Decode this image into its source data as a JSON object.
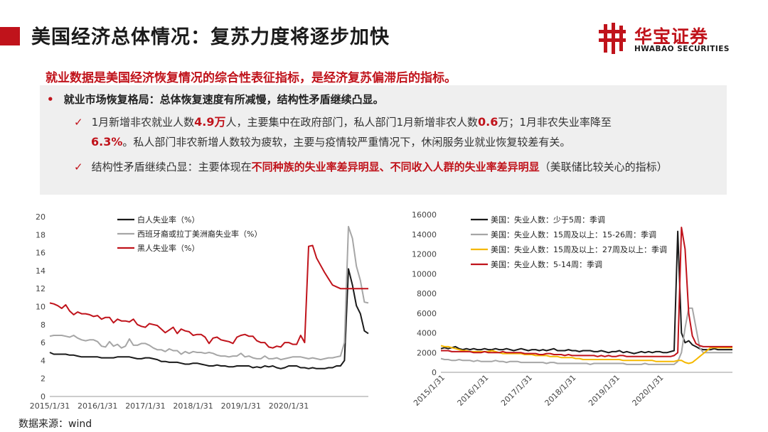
{
  "slide": {
    "title": "美国经济总体情况：复苏力度将逐步加快",
    "accent_color": "#c0131b",
    "logo": {
      "cn": "华宝证券",
      "en": "HWABAO SECURITIES"
    },
    "headline": "就业数据是美国经济恢复情况的综合性表征指标，是经济复苏偏滞后的指标。",
    "bullet": "就业市场恢复格局：总体恢复速度有所减慢，结构性矛盾继续凸显。",
    "check1": {
      "p1": "1月新增非农就业人数",
      "v1": "4.9万",
      "p2": "人，主要集中在政府部门，私人部门1月新增非农人数",
      "v2": "0.6",
      "p3": "万；1月非农失业率降至",
      "v3": "6.3%",
      "p4": "。私人部门非农新增人数较为疲软，主要与疫情较严重情况下，休闲服务业就业恢复较差有关。"
    },
    "check2": {
      "p1": "结构性矛盾继续凸显：主要体现在",
      "h1": "不同种族的失业率差异明显、不同收入人群的失业率差异明显",
      "p2": "（美联储比较关心的指标）"
    },
    "source": "数据来源：wind"
  },
  "chart_data": [
    {
      "type": "line",
      "title": "",
      "ylim": [
        0,
        20
      ],
      "yticks": [
        "0",
        "2",
        "4",
        "6",
        "8",
        "10",
        "12",
        "14",
        "16",
        "18",
        "20"
      ],
      "xticks": [
        "2015/1/31",
        "2016/1/31",
        "2017/1/31",
        "2018/1/31",
        "2019/1/31",
        "2020/1/31"
      ],
      "x_start": "2015-01",
      "legend_position": "top-center",
      "series": [
        {
          "name": "白人失业率（%）",
          "color": "#1a1a1a",
          "values": [
            4.9,
            4.7,
            4.7,
            4.7,
            4.7,
            4.6,
            4.6,
            4.5,
            4.4,
            4.4,
            4.4,
            4.4,
            4.4,
            4.3,
            4.3,
            4.3,
            4.3,
            4.4,
            4.4,
            4.4,
            4.4,
            4.3,
            4.2,
            4.2,
            4.3,
            4.3,
            4.2,
            4.1,
            3.9,
            3.9,
            3.8,
            3.8,
            3.8,
            3.7,
            3.6,
            3.6,
            3.7,
            3.7,
            3.6,
            3.5,
            3.4,
            3.4,
            3.5,
            3.4,
            3.4,
            3.3,
            3.3,
            3.4,
            3.4,
            3.4,
            3.4,
            3.2,
            3.3,
            3.2,
            3.4,
            3.3,
            3.4,
            3.2,
            3.1,
            3.2,
            3.4,
            3.4,
            3.4,
            3.2,
            3.2,
            3.1,
            3.2,
            3.1,
            3.1,
            3.1,
            3.2,
            3.2,
            3.4,
            3.4,
            4.0,
            14.2,
            12.4,
            10.1,
            9.2,
            7.3,
            7.0
          ]
        },
        {
          "name": "西班牙裔或拉丁美洲裔失业率（%）",
          "color": "#a6a6a6",
          "values": [
            6.7,
            6.8,
            6.8,
            6.8,
            6.7,
            6.6,
            6.8,
            6.5,
            6.3,
            6.2,
            6.3,
            6.3,
            6.1,
            5.6,
            5.5,
            6.1,
            5.6,
            5.8,
            5.4,
            5.6,
            6.4,
            5.7,
            5.7,
            5.9,
            5.9,
            5.7,
            5.4,
            5.2,
            5.2,
            5.0,
            5.3,
            5.1,
            5.1,
            4.7,
            5.0,
            4.8,
            5.0,
            4.9,
            4.9,
            4.8,
            4.9,
            4.8,
            4.6,
            4.5,
            4.5,
            4.4,
            4.5,
            4.5,
            4.8,
            4.4,
            4.5,
            4.3,
            4.2,
            4.2,
            4.5,
            4.2,
            4.2,
            4.3,
            4.1,
            4.2,
            4.3,
            4.4,
            4.4,
            4.4,
            4.3,
            4.2,
            4.3,
            4.2,
            4.1,
            4.2,
            4.3,
            4.3,
            4.4,
            4.5,
            6.0,
            18.9,
            17.6,
            14.5,
            12.9,
            10.5,
            10.4
          ]
        },
        {
          "name": "黑人失业率（%）",
          "color": "#c0131b",
          "values": [
            10.4,
            10.3,
            10.1,
            9.8,
            10.2,
            9.5,
            9.1,
            9.4,
            9.2,
            9.2,
            9.1,
            8.9,
            9.0,
            8.6,
            8.8,
            8.8,
            8.2,
            8.6,
            8.4,
            8.4,
            8.3,
            8.6,
            8.0,
            7.8,
            7.7,
            8.1,
            8.0,
            7.9,
            7.5,
            7.1,
            7.4,
            7.7,
            7.0,
            7.5,
            7.3,
            7.2,
            6.8,
            6.9,
            6.9,
            6.6,
            5.9,
            6.5,
            6.6,
            6.3,
            6.2,
            6.1,
            5.9,
            6.6,
            6.8,
            6.9,
            6.7,
            6.7,
            6.2,
            6.0,
            6.0,
            5.5,
            5.4,
            5.6,
            5.5,
            6.0,
            6.0,
            5.8,
            5.8,
            6.8,
            6.0,
            16.7,
            16.8,
            15.4,
            14.6,
            13.8,
            13.1,
            12.4,
            12.2,
            12.0,
            12.0,
            12.0,
            12.0,
            12.0,
            12.0,
            12.0,
            12.0
          ]
        }
      ]
    },
    {
      "type": "line",
      "title": "",
      "ylim": [
        0,
        16000
      ],
      "yticks": [
        "0",
        "2000",
        "4000",
        "6000",
        "8000",
        "10000",
        "12000",
        "14000",
        "16000"
      ],
      "xticks": [
        "2015/1/31",
        "2016/1/31",
        "2017/1/31",
        "2018/1/31",
        "2019/1/31",
        "2020/1/31"
      ],
      "x_start": "2015-01",
      "legend_position": "top-center",
      "series": [
        {
          "name": "美国：失业人数：少于5周：季调",
          "color": "#1a1a1a",
          "values": [
            2400,
            2500,
            2400,
            2500,
            2600,
            2400,
            2300,
            2400,
            2300,
            2400,
            2300,
            2300,
            2400,
            2300,
            2300,
            2400,
            2300,
            2300,
            2400,
            2300,
            2200,
            2300,
            2400,
            2300,
            2200,
            2300,
            2300,
            2200,
            2300,
            2200,
            2300,
            2400,
            2200,
            2200,
            2200,
            2300,
            2200,
            2200,
            2100,
            2200,
            2200,
            2200,
            2100,
            2100,
            2200,
            2100,
            2000,
            2100,
            2100,
            2200,
            2000,
            2100,
            2000,
            1900,
            2000,
            2100,
            2000,
            2100,
            2000,
            2100,
            2100,
            2000,
            2000,
            2100,
            2200,
            14300,
            4000,
            3000,
            3200,
            2800,
            2600,
            2400,
            2300,
            2300,
            2300,
            2400,
            2300,
            2300,
            2300,
            2300,
            2300
          ]
        },
        {
          "name": "美国：失业人数：15周及以上：15-26周：季调",
          "color": "#a6a6a6",
          "values": [
            1400,
            1300,
            1300,
            1200,
            1200,
            1300,
            1200,
            1200,
            1200,
            1100,
            1200,
            1100,
            1100,
            1100,
            1100,
            1200,
            1100,
            1100,
            1000,
            1100,
            1100,
            1100,
            1000,
            1000,
            1000,
            1000,
            1000,
            1000,
            1000,
            900,
            1000,
            1000,
            900,
            900,
            900,
            900,
            900,
            900,
            900,
            900,
            900,
            800,
            900,
            900,
            900,
            900,
            900,
            900,
            900,
            900,
            900,
            800,
            800,
            800,
            800,
            800,
            900,
            800,
            800,
            800,
            800,
            800,
            800,
            800,
            800,
            1100,
            2000,
            4500,
            6500,
            6500,
            4500,
            2500,
            2000,
            2000,
            2000,
            2000,
            2000,
            2000,
            2000,
            2000,
            2000
          ]
        },
        {
          "name": "美国：失业人数：15周及以上：27周及以上：季调",
          "color": "#f5b800",
          "values": [
            2700,
            2600,
            2600,
            2500,
            2400,
            2300,
            2200,
            2200,
            2100,
            2100,
            2100,
            2100,
            2100,
            2100,
            2200,
            2100,
            2000,
            1900,
            1900,
            1900,
            1900,
            1900,
            1900,
            1800,
            1800,
            1800,
            1700,
            1700,
            1700,
            1700,
            1600,
            1600,
            1600,
            1500,
            1500,
            1500,
            1500,
            1400,
            1400,
            1300,
            1300,
            1300,
            1300,
            1300,
            1300,
            1300,
            1300,
            1300,
            1300,
            1300,
            1200,
            1200,
            1200,
            1200,
            1200,
            1200,
            1200,
            1200,
            1200,
            1100,
            1100,
            1100,
            1100,
            1100,
            1100,
            1200,
            1200,
            1000,
            900,
            1000,
            1300,
            1600,
            1900,
            2200,
            2500,
            2500,
            2500,
            2500,
            2500,
            2500,
            2500
          ]
        },
        {
          "name": "美国：失业人数：5-14周：季调",
          "color": "#c0131b",
          "values": [
            2200,
            2200,
            2200,
            2100,
            2100,
            2100,
            2100,
            2100,
            2100,
            2000,
            2000,
            2000,
            2100,
            2000,
            2000,
            2000,
            2000,
            2100,
            2000,
            2000,
            2000,
            2000,
            2000,
            1900,
            1900,
            1900,
            1900,
            1800,
            1800,
            1900,
            1900,
            1800,
            1800,
            1800,
            1700,
            1800,
            1700,
            1700,
            1700,
            1700,
            1700,
            1700,
            1700,
            1600,
            1700,
            1600,
            1700,
            1600,
            1600,
            1700,
            1700,
            1600,
            1600,
            1600,
            1600,
            1600,
            1600,
            1600,
            1600,
            1600,
            1600,
            1600,
            1600,
            1600,
            1700,
            2000,
            14700,
            12500,
            6000,
            3700,
            2900,
            2700,
            2600,
            2600,
            2600,
            2600,
            2600,
            2600,
            2600,
            2600,
            2600
          ]
        }
      ]
    }
  ]
}
